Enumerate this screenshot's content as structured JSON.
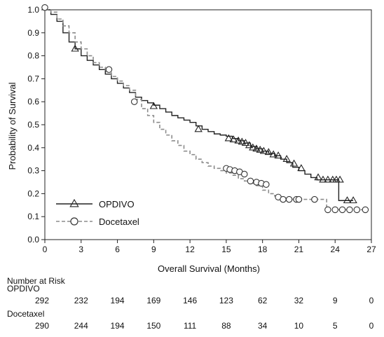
{
  "chart_data": {
    "type": "line",
    "title": "",
    "xlabel": "Overall Survival (Months)",
    "ylabel": "Probability of Survival",
    "xlim": [
      0,
      27
    ],
    "ylim": [
      0,
      1.0
    ],
    "xticks": [
      0,
      3,
      6,
      9,
      12,
      15,
      18,
      21,
      24,
      27
    ],
    "xtick_labels": [
      "0",
      "3",
      "6",
      "9",
      "12",
      "15",
      "18",
      "21",
      "24",
      "27"
    ],
    "yticks": [
      0,
      0.1,
      0.2,
      0.3,
      0.4,
      0.5,
      0.6,
      0.7,
      0.8,
      0.9,
      1.0
    ],
    "ytick_labels": [
      "0.0",
      "0.1",
      "0.2",
      "0.3",
      "0.4",
      "0.5",
      "0.6",
      "0.7",
      "0.8",
      "0.9",
      "1.0"
    ],
    "grid": false,
    "legend_position": "bottom-left",
    "series": [
      {
        "name": "OPDIVO",
        "color": "#222222",
        "line_style": "solid",
        "marker": "triangle",
        "x": [
          0,
          0.5,
          1,
          1.5,
          2,
          2.5,
          3,
          3.5,
          4,
          4.5,
          5,
          5.5,
          6,
          6.5,
          7,
          7.5,
          8,
          8.5,
          9,
          9.5,
          10,
          10.5,
          11,
          11.5,
          12,
          12.5,
          13,
          13.5,
          14,
          14.5,
          15,
          15.5,
          16,
          16.5,
          17,
          17.5,
          18,
          18.5,
          19,
          19.5,
          20,
          20.5,
          21,
          21.5,
          22,
          22.5,
          23,
          23.5,
          24.2,
          24.3,
          25.5
        ],
        "y": [
          1.0,
          0.98,
          0.95,
          0.9,
          0.86,
          0.83,
          0.8,
          0.78,
          0.76,
          0.74,
          0.72,
          0.7,
          0.68,
          0.66,
          0.64,
          0.62,
          0.605,
          0.595,
          0.585,
          0.57,
          0.555,
          0.54,
          0.53,
          0.52,
          0.51,
          0.495,
          0.48,
          0.47,
          0.46,
          0.455,
          0.45,
          0.44,
          0.43,
          0.42,
          0.405,
          0.395,
          0.385,
          0.375,
          0.365,
          0.35,
          0.335,
          0.315,
          0.3,
          0.285,
          0.27,
          0.26,
          0.26,
          0.26,
          0.26,
          0.17,
          0.17
        ],
        "censored_x": [
          2.5,
          9,
          12.7,
          15.2,
          15.6,
          16.0,
          16.3,
          16.6,
          16.9,
          17.2,
          17.5,
          17.8,
          18.1,
          18.5,
          18.9,
          19.3,
          20.0,
          20.6,
          21.2,
          22.6,
          23.0,
          23.4,
          23.8,
          24.1,
          24.4,
          25.0,
          25.5
        ],
        "censored_y": [
          0.83,
          0.58,
          0.48,
          0.44,
          0.435,
          0.43,
          0.425,
          0.42,
          0.41,
          0.4,
          0.395,
          0.39,
          0.385,
          0.38,
          0.37,
          0.365,
          0.35,
          0.33,
          0.31,
          0.27,
          0.26,
          0.26,
          0.26,
          0.26,
          0.26,
          0.17,
          0.17
        ]
      },
      {
        "name": "Docetaxel",
        "color": "#8c8c8c",
        "line_style": "dashed",
        "marker": "circle",
        "x": [
          0,
          0.5,
          1,
          1.5,
          2,
          2.5,
          3,
          3.5,
          4,
          4.5,
          5,
          5.5,
          6,
          6.5,
          7,
          7.5,
          8,
          8.5,
          9,
          9.5,
          10,
          10.5,
          11,
          11.5,
          12,
          12.5,
          13,
          13.5,
          14,
          14.5,
          15,
          15.5,
          16,
          16.5,
          17,
          17.5,
          18,
          18.5,
          19,
          19.5,
          20,
          20.5,
          21,
          21.5,
          22,
          22.5,
          23,
          23.3,
          24,
          25,
          26.5
        ],
        "y": [
          1.0,
          0.99,
          0.96,
          0.93,
          0.9,
          0.86,
          0.83,
          0.8,
          0.77,
          0.75,
          0.73,
          0.71,
          0.69,
          0.67,
          0.65,
          0.61,
          0.57,
          0.54,
          0.51,
          0.48,
          0.455,
          0.43,
          0.41,
          0.385,
          0.37,
          0.35,
          0.335,
          0.32,
          0.31,
          0.3,
          0.29,
          0.28,
          0.265,
          0.255,
          0.245,
          0.235,
          0.215,
          0.2,
          0.19,
          0.18,
          0.175,
          0.175,
          0.175,
          0.175,
          0.175,
          0.175,
          0.175,
          0.13,
          0.13,
          0.13,
          0.13
        ],
        "censored_x": [
          0,
          5.3,
          7.4,
          15.0,
          15.3,
          15.7,
          16.1,
          16.5,
          17.0,
          17.5,
          17.9,
          18.3,
          19.3,
          19.7,
          20.2,
          20.8,
          21.0,
          22.3,
          23.4,
          24.0,
          24.6,
          25.2,
          25.8,
          26.5
        ],
        "censored_y": [
          1.01,
          0.74,
          0.6,
          0.31,
          0.305,
          0.3,
          0.295,
          0.285,
          0.255,
          0.25,
          0.245,
          0.24,
          0.185,
          0.175,
          0.175,
          0.175,
          0.175,
          0.175,
          0.13,
          0.13,
          0.13,
          0.13,
          0.13,
          0.13
        ]
      }
    ],
    "risk_table": {
      "title": "Number at Risk",
      "times": [
        0,
        3,
        6,
        9,
        12,
        15,
        18,
        21,
        24,
        27
      ],
      "rows": [
        {
          "label": "OPDIVO",
          "values": [
            "292",
            "232",
            "194",
            "169",
            "146",
            "123",
            "62",
            "32",
            "9",
            "0"
          ]
        },
        {
          "label": "Docetaxel",
          "values": [
            "290",
            "244",
            "194",
            "150",
            "111",
            "88",
            "34",
            "10",
            "5",
            "0"
          ]
        }
      ]
    }
  }
}
